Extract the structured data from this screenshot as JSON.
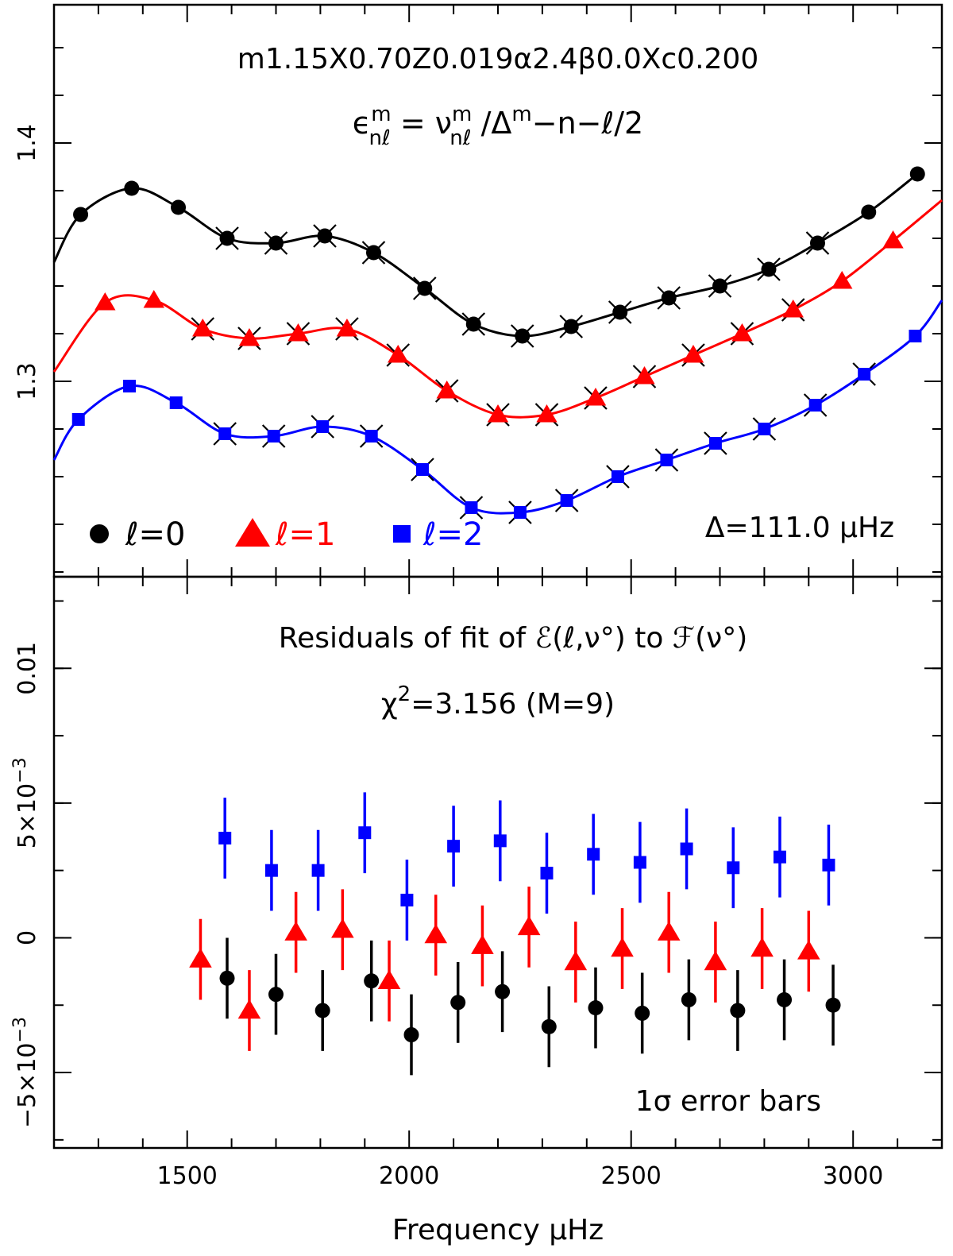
{
  "colors": {
    "l0": "#000000",
    "l1": "#ff0000",
    "l2": "#0000ff",
    "cross": "#000000"
  },
  "top_panel": {
    "title": "m1.15X0.70Z0.019α2.4β0.0Xc0.200",
    "formula": {
      "lhs": "ϵ",
      "lhs_sup": "m",
      "lhs_sub": "nℓ",
      "eq": " = ",
      "nu": "ν",
      "nu_sup": "m",
      "nu_sub": "nℓ",
      "slash": " /Δ",
      "delta_sup": "m",
      "tail": "−n−ℓ/2"
    },
    "legend": {
      "l0": "ℓ=0",
      "l1": "ℓ=1",
      "l2": "ℓ=2"
    },
    "delta_note": "Δ=111.0 μHz"
  },
  "bottom_panel": {
    "title": "Residuals of fit of ℰ(ℓ,ν°) to ℱ(ν°)",
    "chi_prefix": "χ",
    "chi_sup": "2",
    "chi_rest": "=3.156 (M=9)",
    "note": "1σ error bars"
  },
  "x_axis": {
    "label": "Frequency μHz",
    "ticks": [
      "1500",
      "2000",
      "2500",
      "3000"
    ]
  },
  "chart_data": [
    {
      "type": "line",
      "xlabel": "Frequency μHz",
      "ylabel": "",
      "xlim": [
        1200,
        3200
      ],
      "ylim": [
        1.218,
        1.458
      ],
      "y_ticks": [
        "1.3",
        "1.4"
      ],
      "series": [
        {
          "name": "ℓ=0",
          "marker": "circle",
          "x": [
            1260,
            1375,
            1480,
            1590,
            1700,
            1810,
            1920,
            2035,
            2145,
            2255,
            2365,
            2475,
            2585,
            2700,
            2810,
            2920,
            3035,
            3145
          ],
          "y": [
            1.37,
            1.381,
            1.373,
            1.36,
            1.358,
            1.361,
            1.354,
            1.339,
            1.324,
            1.319,
            1.323,
            1.329,
            1.335,
            1.34,
            1.347,
            1.358,
            1.371,
            1.387
          ]
        },
        {
          "name": "ℓ=1",
          "marker": "triangle",
          "x": [
            1315,
            1425,
            1535,
            1640,
            1750,
            1860,
            1975,
            2085,
            2200,
            2310,
            2420,
            2530,
            2640,
            2750,
            2865,
            2975,
            3090
          ],
          "y": [
            1.333,
            1.334,
            1.322,
            1.318,
            1.32,
            1.322,
            1.311,
            1.296,
            1.286,
            1.286,
            1.293,
            1.302,
            1.311,
            1.32,
            1.33,
            1.342,
            1.359
          ]
        },
        {
          "name": "ℓ=2",
          "marker": "square",
          "x": [
            1255,
            1370,
            1475,
            1585,
            1695,
            1805,
            1915,
            2030,
            2140,
            2250,
            2355,
            2470,
            2580,
            2690,
            2800,
            2915,
            3025,
            3140
          ],
          "y": [
            1.284,
            1.298,
            1.291,
            1.278,
            1.277,
            1.281,
            1.277,
            1.263,
            1.247,
            1.245,
            1.25,
            1.26,
            1.267,
            1.274,
            1.28,
            1.29,
            1.303,
            1.319
          ]
        }
      ],
      "curves": [
        {
          "name": "ℓ=0 fit",
          "x": [
            1200,
            1260,
            1375,
            1480,
            1590,
            1700,
            1810,
            1920,
            2035,
            2145,
            2255,
            2365,
            2475,
            2585,
            2700,
            2810,
            2920,
            3035,
            3145
          ],
          "y": [
            1.35,
            1.37,
            1.381,
            1.373,
            1.36,
            1.358,
            1.361,
            1.354,
            1.339,
            1.324,
            1.319,
            1.323,
            1.329,
            1.335,
            1.34,
            1.347,
            1.358,
            1.371,
            1.387
          ]
        },
        {
          "name": "ℓ=1 fit",
          "x": [
            1200,
            1315,
            1425,
            1535,
            1640,
            1750,
            1860,
            1975,
            2085,
            2200,
            2310,
            2420,
            2530,
            2640,
            2750,
            2865,
            2975,
            3090,
            3200
          ],
          "y": [
            1.304,
            1.333,
            1.334,
            1.322,
            1.318,
            1.32,
            1.322,
            1.311,
            1.296,
            1.286,
            1.286,
            1.293,
            1.302,
            1.311,
            1.32,
            1.33,
            1.342,
            1.359,
            1.376
          ]
        },
        {
          "name": "ℓ=2 fit",
          "x": [
            1200,
            1255,
            1370,
            1475,
            1585,
            1695,
            1805,
            1915,
            2030,
            2140,
            2250,
            2355,
            2470,
            2580,
            2690,
            2800,
            2915,
            3025,
            3140,
            3200
          ],
          "y": [
            1.267,
            1.284,
            1.298,
            1.291,
            1.278,
            1.277,
            1.281,
            1.277,
            1.263,
            1.247,
            1.245,
            1.25,
            1.26,
            1.267,
            1.274,
            1.28,
            1.29,
            1.303,
            1.319,
            1.334
          ]
        }
      ],
      "crosses": [
        {
          "x": 1590,
          "y": 1.36
        },
        {
          "x": 1700,
          "y": 1.358
        },
        {
          "x": 1810,
          "y": 1.361
        },
        {
          "x": 1920,
          "y": 1.354
        },
        {
          "x": 2035,
          "y": 1.339
        },
        {
          "x": 2145,
          "y": 1.324
        },
        {
          "x": 2255,
          "y": 1.319
        },
        {
          "x": 2365,
          "y": 1.323
        },
        {
          "x": 2475,
          "y": 1.329
        },
        {
          "x": 2585,
          "y": 1.335
        },
        {
          "x": 2700,
          "y": 1.34
        },
        {
          "x": 2810,
          "y": 1.347
        },
        {
          "x": 2920,
          "y": 1.358
        },
        {
          "x": 1535,
          "y": 1.322
        },
        {
          "x": 1640,
          "y": 1.318
        },
        {
          "x": 1750,
          "y": 1.32
        },
        {
          "x": 1860,
          "y": 1.322
        },
        {
          "x": 1975,
          "y": 1.311
        },
        {
          "x": 2085,
          "y": 1.296
        },
        {
          "x": 2200,
          "y": 1.286
        },
        {
          "x": 2310,
          "y": 1.286
        },
        {
          "x": 2420,
          "y": 1.293
        },
        {
          "x": 2530,
          "y": 1.302
        },
        {
          "x": 2640,
          "y": 1.311
        },
        {
          "x": 2750,
          "y": 1.32
        },
        {
          "x": 2865,
          "y": 1.33
        },
        {
          "x": 1585,
          "y": 1.278
        },
        {
          "x": 1695,
          "y": 1.277
        },
        {
          "x": 1805,
          "y": 1.281
        },
        {
          "x": 1915,
          "y": 1.277
        },
        {
          "x": 2030,
          "y": 1.263
        },
        {
          "x": 2140,
          "y": 1.247
        },
        {
          "x": 2250,
          "y": 1.245
        },
        {
          "x": 2355,
          "y": 1.25
        },
        {
          "x": 2470,
          "y": 1.26
        },
        {
          "x": 2580,
          "y": 1.267
        },
        {
          "x": 2690,
          "y": 1.274
        },
        {
          "x": 2800,
          "y": 1.28
        },
        {
          "x": 2915,
          "y": 1.29
        },
        {
          "x": 3025,
          "y": 1.303
        }
      ],
      "legend_position": "bottom-left"
    },
    {
      "type": "scatter",
      "xlabel": "Frequency μHz",
      "ylabel": "",
      "xlim": [
        1200,
        3200
      ],
      "ylim": [
        -0.0078,
        0.0134
      ],
      "y_ticks": [
        {
          "value": -0.005,
          "base": "−5×10",
          "exp": "−3"
        },
        {
          "value": 0,
          "base": "0",
          "exp": ""
        },
        {
          "value": 0.005,
          "base": "5×10",
          "exp": "−3"
        },
        {
          "value": 0.01,
          "base": "0.01",
          "exp": ""
        }
      ],
      "series": [
        {
          "name": "ℓ=0",
          "marker": "circle",
          "x": [
            1590,
            1700,
            1805,
            1915,
            2005,
            2110,
            2210,
            2315,
            2420,
            2525,
            2630,
            2740,
            2845,
            2955
          ],
          "y": [
            -0.0015,
            -0.0021,
            -0.0027,
            -0.0016,
            -0.0036,
            -0.0024,
            -0.002,
            -0.0033,
            -0.0026,
            -0.0028,
            -0.0023,
            -0.0027,
            -0.0023,
            -0.0025
          ],
          "err": 0.0015
        },
        {
          "name": "ℓ=1",
          "marker": "triangle",
          "x": [
            1530,
            1640,
            1745,
            1850,
            1955,
            2060,
            2165,
            2270,
            2375,
            2480,
            2585,
            2690,
            2795,
            2900
          ],
          "y": [
            -0.0008,
            -0.0027,
            0.0002,
            0.0003,
            -0.0016,
            0.0001,
            -0.0003,
            0.0004,
            -0.0009,
            -0.0004,
            0.0002,
            -0.0009,
            -0.0004,
            -0.0005
          ],
          "err": 0.0015
        },
        {
          "name": "ℓ=2",
          "marker": "square",
          "x": [
            1585,
            1690,
            1795,
            1900,
            1995,
            2100,
            2205,
            2310,
            2415,
            2520,
            2625,
            2730,
            2835,
            2945
          ],
          "y": [
            0.0037,
            0.0025,
            0.0025,
            0.0039,
            0.0014,
            0.0034,
            0.0036,
            0.0024,
            0.0031,
            0.0028,
            0.0033,
            0.0026,
            0.003,
            0.0027
          ],
          "err": 0.0015
        }
      ]
    }
  ]
}
